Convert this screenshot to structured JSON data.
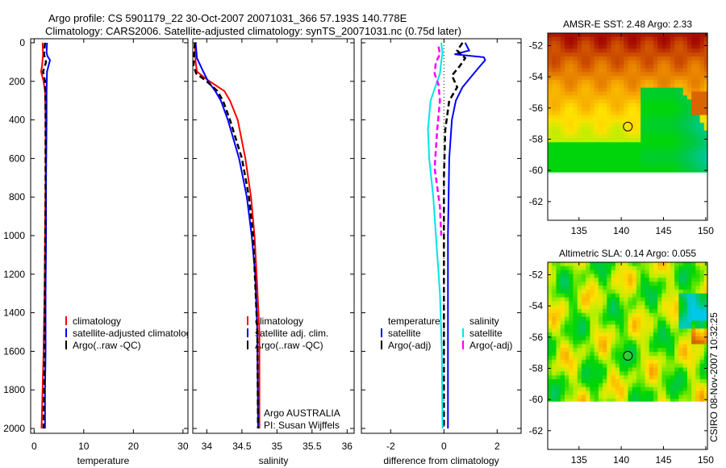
{
  "header": {
    "title_line1": "Argo profile: CS 5901179_22 30-Oct-2007 20071031_366 57.193S 140.778E",
    "title_line2": "Climatology: CARS2006. Satellite-adjusted climatology: synTS_20071031.nc (0.75d later)"
  },
  "footer": {
    "stamp": "CSIRO 08-Nov-2007 10:32:25"
  },
  "chart_data": [
    {
      "type": "line",
      "xlabel": "temperature",
      "ylabel": "",
      "xlim": [
        -0.7,
        31
      ],
      "ylim": [
        2025,
        0
      ],
      "xticks": [
        0,
        10,
        20,
        30
      ],
      "yticks": [
        0,
        200,
        400,
        600,
        800,
        1000,
        1200,
        1400,
        1600,
        1800,
        2000
      ],
      "legend": {
        "position": "right",
        "entries": [
          "climatology",
          "satellite-adjusted climatology",
          "Argo(..raw -QC)"
        ]
      },
      "series": [
        {
          "name": "climatology",
          "color": "#ff0000",
          "style": "solid",
          "depth": [
            0,
            60,
            120,
            150,
            200,
            250,
            400,
            700,
            1000,
            1300,
            1600,
            1800,
            2000
          ],
          "values": [
            1.7,
            1.8,
            1.6,
            1.4,
            1.9,
            2.2,
            2.3,
            2.3,
            2.2,
            2.1,
            1.9,
            1.7,
            1.5
          ]
        },
        {
          "name": "satellite-adjusted climatology",
          "color": "#0000ff",
          "style": "solid",
          "depth": [
            0,
            50,
            70,
            90,
            150,
            250,
            400,
            700,
            1000,
            1300,
            1600,
            1800,
            2000
          ],
          "values": [
            2.6,
            2.5,
            2.7,
            3.2,
            2.6,
            2.5,
            2.5,
            2.4,
            2.4,
            2.3,
            2.3,
            2.2,
            2.2
          ]
        },
        {
          "name": "Argo(..raw -QC)",
          "color": "#000000",
          "style": "dashed",
          "depth": [
            0,
            60,
            100,
            150,
            200,
            300,
            500,
            800,
            1200,
            1600,
            2000
          ],
          "values": [
            2.2,
            2.0,
            2.4,
            1.8,
            2.2,
            2.3,
            2.3,
            2.3,
            2.2,
            2.1,
            1.9
          ]
        }
      ]
    },
    {
      "type": "line",
      "xlabel": "salinity",
      "xlim": [
        33.8,
        36.1
      ],
      "ylim": [
        2025,
        0
      ],
      "xticks": [
        34,
        34.5,
        35,
        35.5,
        36
      ],
      "legend": {
        "position": "right",
        "entries": [
          "climatology",
          "satellite adj. clim.",
          "Argo(..raw -QC)"
        ]
      },
      "annotations": [
        "Argo AUSTRALIA",
        "PI: Susan Wijffels"
      ],
      "series": [
        {
          "name": "climatology",
          "color": "#ff0000",
          "style": "solid",
          "depth": [
            0,
            100,
            150,
            190,
            250,
            300,
            400,
            600,
            800,
            1000,
            1200,
            1500,
            2000
          ],
          "values": [
            33.83,
            33.84,
            33.86,
            34.0,
            34.25,
            34.33,
            34.44,
            34.55,
            34.63,
            34.68,
            34.71,
            34.75,
            34.75
          ]
        },
        {
          "name": "satellite adj. clim.",
          "color": "#0000ff",
          "style": "solid",
          "depth": [
            0,
            80,
            150,
            200,
            250,
            300,
            400,
            600,
            800,
            1000,
            1200,
            1500,
            2000
          ],
          "values": [
            33.84,
            33.86,
            33.95,
            34.02,
            34.12,
            34.2,
            34.3,
            34.46,
            34.57,
            34.64,
            34.69,
            34.72,
            34.73
          ]
        },
        {
          "name": "Argo(..raw -QC)",
          "color": "#000000",
          "style": "dashed",
          "depth": [
            0,
            60,
            120,
            160,
            200,
            250,
            300,
            400,
            600,
            800,
            1000,
            1500,
            2000
          ],
          "values": [
            33.83,
            33.82,
            33.81,
            33.85,
            34.0,
            34.15,
            34.23,
            34.33,
            34.5,
            34.6,
            34.66,
            34.72,
            34.73
          ]
        }
      ]
    },
    {
      "type": "line",
      "xlabel": "difference from climatology",
      "xlim": [
        -3.1,
        2.9
      ],
      "ylim": [
        2025,
        0
      ],
      "xticks": [
        -2,
        0,
        2
      ],
      "legend": {
        "position": "right",
        "groups": [
          {
            "heading": "temperature",
            "entries": [
              "satellite",
              "Argo(-adj)"
            ]
          },
          {
            "heading": "salinity",
            "entries": [
              "satellite",
              "Argo(-adj)"
            ]
          }
        ]
      },
      "series": [
        {
          "name": "temperature satellite",
          "color": "#0000ff",
          "style": "solid",
          "depth": [
            0,
            40,
            60,
            75,
            90,
            130,
            180,
            230,
            300,
            400,
            600,
            1000,
            1500,
            2000
          ],
          "values": [
            0.8,
            0.95,
            0.4,
            1.5,
            1.55,
            1.3,
            1.0,
            0.7,
            0.45,
            0.3,
            0.2,
            0.15,
            0.15,
            0.15
          ]
        },
        {
          "name": "temperature Argo(-adj)",
          "color": "#000000",
          "style": "dashed",
          "depth": [
            0,
            40,
            80,
            120,
            170,
            230,
            300,
            450,
            700,
            1000,
            1500,
            2000
          ],
          "values": [
            0.7,
            0.5,
            0.8,
            0.6,
            0.3,
            0.5,
            0.2,
            0.05,
            0.0,
            0.0,
            0.0,
            0.0
          ]
        },
        {
          "name": "salinity satellite",
          "color": "#00e5e5",
          "style": "solid",
          "depth": [
            0,
            50,
            100,
            160,
            220,
            300,
            450,
            600,
            800,
            1000,
            1300,
            1600,
            2000
          ],
          "values": [
            -0.1,
            -0.05,
            -0.1,
            -0.15,
            -0.3,
            -0.5,
            -0.6,
            -0.55,
            -0.4,
            -0.3,
            -0.15,
            -0.08,
            -0.05
          ]
        },
        {
          "name": "salinity Argo(-adj)",
          "color": "#ff00ff",
          "style": "dashed",
          "depth": [
            20,
            60,
            100,
            160,
            220,
            300,
            450,
            650,
            850,
            1000
          ],
          "values": [
            -0.2,
            -0.15,
            -0.3,
            -0.35,
            -0.2,
            -0.15,
            -0.25,
            -0.35,
            -0.15,
            -0.1
          ]
        }
      ]
    },
    {
      "type": "heatmap",
      "title": "AMSR-E SST: 2.48 Argo: 2.33",
      "field": "sst",
      "xlim": [
        131.3,
        150.2
      ],
      "ylim": [
        -63.2,
        -51.2
      ],
      "data_lat_min": -60.1,
      "xticks": [
        135,
        140,
        145,
        150
      ],
      "yticks": [
        -52,
        -54,
        -56,
        -58,
        -60,
        -62
      ],
      "marker": {
        "lon": 140.778,
        "lat": -57.193,
        "fill": "none"
      }
    },
    {
      "type": "heatmap",
      "title": "Altimetric SLA: 0.14 Argo: 0.055",
      "field": "sla",
      "xlim": [
        131.3,
        150.2
      ],
      "ylim": [
        -63.2,
        -51.2
      ],
      "data_lat_min": -60.1,
      "xticks": [
        135,
        140,
        145,
        150
      ],
      "yticks": [
        -52,
        -54,
        -56,
        -58,
        -60,
        -62
      ],
      "marker": {
        "lon": 140.778,
        "lat": -57.193,
        "fill": "#33cc33"
      }
    }
  ]
}
